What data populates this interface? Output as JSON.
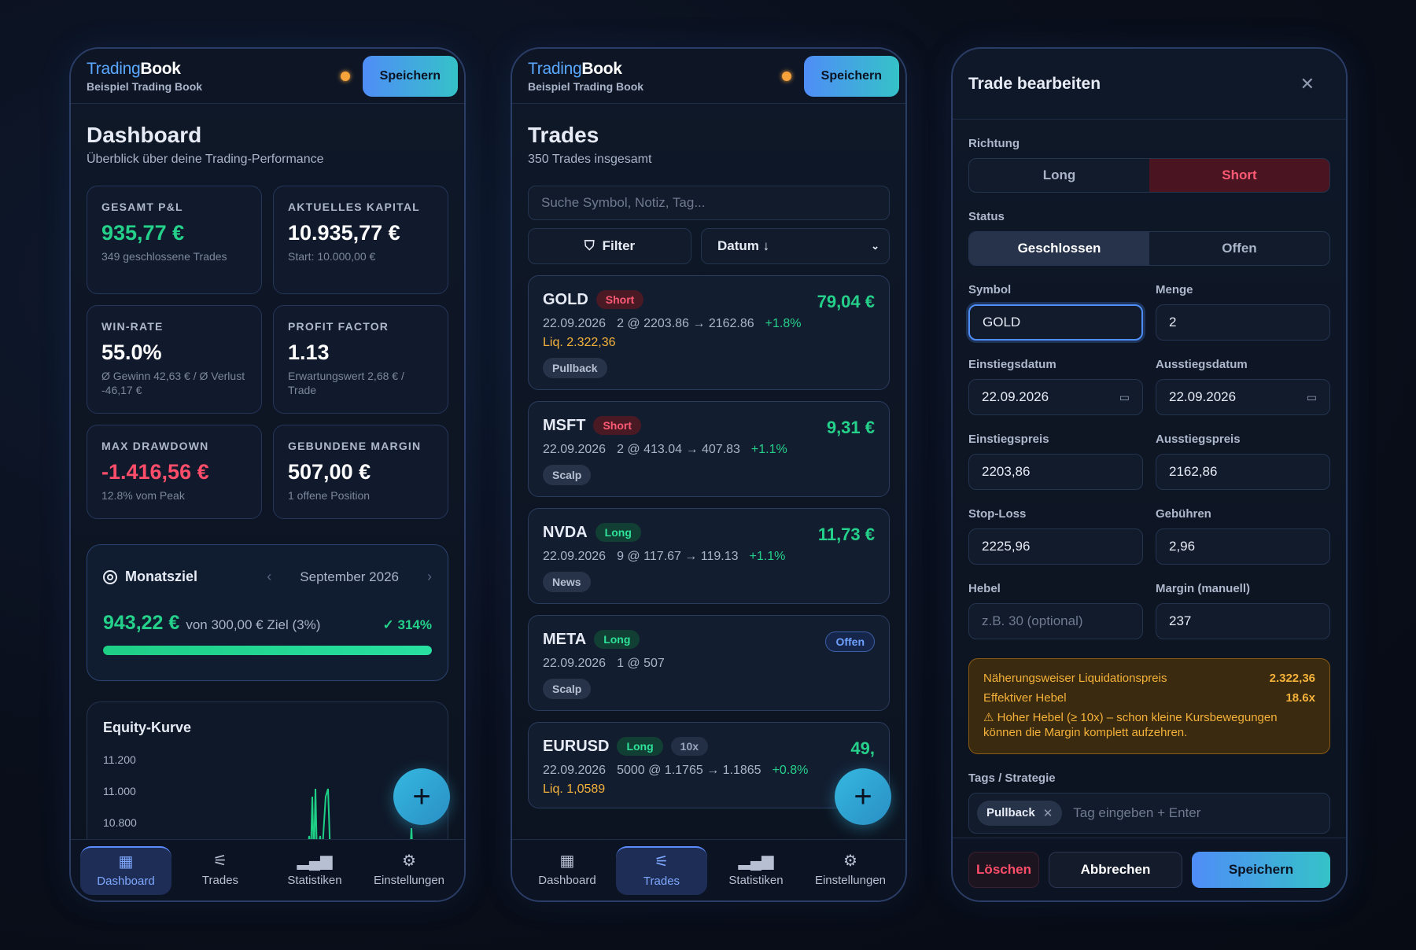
{
  "brand": {
    "part1": "Trading",
    "part2": "Book",
    "subtitle": "Beispiel Trading Book",
    "save_label": "Speichern"
  },
  "nav": [
    {
      "label": "Dashboard",
      "icon": "grid-icon"
    },
    {
      "label": "Trades",
      "icon": "sliders-icon"
    },
    {
      "label": "Statistiken",
      "icon": "bar-chart-icon"
    },
    {
      "label": "Einstellungen",
      "icon": "gear-icon"
    }
  ],
  "dashboard": {
    "title": "Dashboard",
    "subtitle": "Überblick über deine Trading-Performance",
    "stats": [
      {
        "label": "GESAMT P&L",
        "value": "935,77 €",
        "note": "349 geschlossene Trades"
      },
      {
        "label": "AKTUELLES KAPITAL",
        "value": "10.935,77 €",
        "note": "Start: 10.000,00 €"
      },
      {
        "label": "WIN-RATE",
        "value": "55.0%",
        "note": "Ø Gewinn 42,63 € / Ø Verlust -46,17 €"
      },
      {
        "label": "PROFIT FACTOR",
        "value": "1.13",
        "note": "Erwartungswert 2,68 € / Trade"
      },
      {
        "label": "MAX DRAWDOWN",
        "value": "-1.416,56 €",
        "note": "12.8% vom Peak"
      },
      {
        "label": "GEBUNDENE MARGIN",
        "value": "507,00 €",
        "note": "1 offene Position"
      }
    ],
    "goal": {
      "title": "Monatsziel",
      "month": "September 2026",
      "amount": "943,22 €",
      "target_text": "von 300,00 € Ziel (3%)",
      "percent_text": "314%",
      "progress": 1.0
    },
    "equity": {
      "title": "Equity-Kurve",
      "ticks": [
        "11.200",
        "11.000",
        "10.800"
      ]
    }
  },
  "chart_data": {
    "type": "line",
    "title": "Equity-Kurve",
    "ylim": [
      10700,
      11200
    ],
    "yticks": [
      11200,
      11000,
      10800
    ]
  },
  "trades": {
    "title": "Trades",
    "subtitle": "350 Trades insgesamt",
    "search_placeholder": "Suche Symbol, Notiz, Tag...",
    "filter_label": "Filter",
    "sort_label": "Datum ↓",
    "items": [
      {
        "symbol": "GOLD",
        "dir": "Short",
        "pnl": "79,04 €",
        "date": "22.09.2026",
        "detail": "2 @ 2203.86 → 2162.86",
        "pct": "+1.8%",
        "liq": "Liq. 2.322,36",
        "tag": "Pullback"
      },
      {
        "symbol": "MSFT",
        "dir": "Short",
        "pnl": "9,31 €",
        "date": "22.09.2026",
        "detail": "2 @ 413.04 → 407.83",
        "pct": "+1.1%",
        "tag": "Scalp"
      },
      {
        "symbol": "NVDA",
        "dir": "Long",
        "pnl": "11,73 €",
        "date": "22.09.2026",
        "detail": "9 @ 117.67 → 119.13",
        "pct": "+1.1%",
        "tag": "News"
      },
      {
        "symbol": "META",
        "dir": "Long",
        "status": "Offen",
        "date": "22.09.2026",
        "detail": "1 @ 507",
        "tag": "Scalp"
      },
      {
        "symbol": "EURUSD",
        "dir": "Long",
        "leverage": "10x",
        "pnl": "49,",
        "date": "22.09.2026",
        "detail": "5000 @ 1.1765 → 1.1865",
        "pct": "+0.8%",
        "liq": "Liq. 1,0589"
      }
    ]
  },
  "edit": {
    "title": "Trade bearbeiten",
    "direction_label": "Richtung",
    "long": "Long",
    "short": "Short",
    "status_label": "Status",
    "closed": "Geschlossen",
    "open": "Offen",
    "symbol_label": "Symbol",
    "symbol": "GOLD",
    "qty_label": "Menge",
    "qty": "2",
    "entry_date_label": "Einstiegsdatum",
    "entry_date": "22.09.2026",
    "exit_date_label": "Ausstiegsdatum",
    "exit_date": "22.09.2026",
    "entry_price_label": "Einstiegspreis",
    "entry_price": "2203,86",
    "exit_price_label": "Ausstiegspreis",
    "exit_price": "2162,86",
    "sl_label": "Stop-Loss",
    "sl": "2225,96",
    "fees_label": "Gebühren",
    "fees": "2,96",
    "lev_label": "Hebel",
    "lev_placeholder": "z.B. 30 (optional)",
    "margin_label": "Margin (manuell)",
    "margin": "237",
    "liq_label": "Näherungsweiser Liquidationspreis",
    "liq_value": "2.322,36",
    "eff_label": "Effektiver Hebel",
    "eff_value": "18.6x",
    "warning": "⚠ Hoher Hebel (≥ 10x) – schon kleine Kursbewegungen können die Margin komplett aufzehren.",
    "tags_label": "Tags / Strategie",
    "tag": "Pullback",
    "tag_placeholder": "Tag eingeben + Enter",
    "delete": "Löschen",
    "cancel": "Abbrechen",
    "save": "Speichern"
  }
}
